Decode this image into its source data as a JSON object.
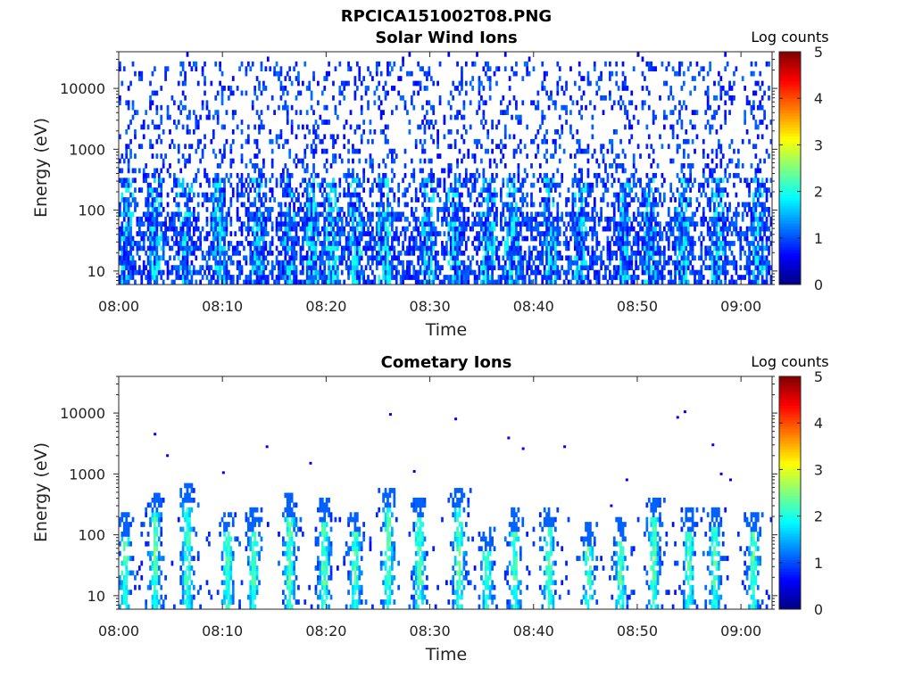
{
  "figure_title": "RPCICA151002T08.PNG",
  "colors": {
    "colormap": "jet",
    "background": "#ffffff",
    "axis": "#262626"
  },
  "chart_data": [
    {
      "type": "heatmap",
      "title": "Solar Wind Ions",
      "xlabel": "Time",
      "ylabel": "Energy (eV)",
      "x_ticks": [
        "08:00",
        "08:10",
        "08:20",
        "08:30",
        "08:40",
        "08:50",
        "09:00"
      ],
      "x_tick_minutes": [
        0,
        10,
        20,
        30,
        40,
        50,
        60
      ],
      "xlim_minutes": [
        0,
        63
      ],
      "y_scale": "log",
      "y_ticks": [
        "10",
        "100",
        "1000",
        "10000"
      ],
      "y_tick_values": [
        10,
        100,
        1000,
        10000
      ],
      "ylim": [
        6,
        40000
      ],
      "colorbar": {
        "label": "Log counts",
        "range": [
          0,
          5
        ],
        "ticks": [
          "0",
          "1",
          "2",
          "3",
          "4",
          "5"
        ]
      },
      "grid": false,
      "pattern": "sparse_background",
      "seed": 11,
      "bursts_minutes": [
        0.8,
        3.5,
        6.4,
        9.7,
        13.4,
        16.3,
        18.6,
        20.5,
        22.8,
        25.6,
        29.8,
        32.4,
        35.6,
        37.9,
        41.6,
        44.6,
        48.7,
        51.3,
        54.4,
        57.8,
        61.8
      ]
    },
    {
      "type": "heatmap",
      "title": "Cometary Ions",
      "xlabel": "Time",
      "ylabel": "Energy (eV)",
      "x_ticks": [
        "08:00",
        "08:10",
        "08:20",
        "08:30",
        "08:40",
        "08:50",
        "09:00"
      ],
      "x_tick_minutes": [
        0,
        10,
        20,
        30,
        40,
        50,
        60
      ],
      "xlim_minutes": [
        0,
        63
      ],
      "y_scale": "log",
      "y_ticks": [
        "10",
        "100",
        "1000",
        "10000"
      ],
      "y_tick_values": [
        10,
        100,
        1000,
        10000
      ],
      "ylim": [
        6,
        40000
      ],
      "colorbar": {
        "label": "Log counts",
        "range": [
          0,
          5
        ],
        "ticks": [
          "0",
          "1",
          "2",
          "3",
          "4",
          "5"
        ]
      },
      "grid": false,
      "pattern": "bursts",
      "seed": 29,
      "bursts_minutes": [
        0.6,
        3.5,
        6.6,
        10.5,
        13.0,
        16.5,
        19.8,
        22.8,
        26.0,
        29.0,
        32.8,
        35.5,
        38.2,
        41.5,
        45.3,
        48.4,
        51.6,
        55.0,
        57.5,
        61.2
      ],
      "burst_peak_energy_eV": [
        220,
        500,
        700,
        250,
        260,
        450,
        380,
        250,
        600,
        420,
        600,
        130,
        260,
        300,
        150,
        180,
        420,
        260,
        300,
        240
      ],
      "sparse_points": [
        [
          3.5,
          4500
        ],
        [
          4.7,
          2000
        ],
        [
          10.1,
          1050
        ],
        [
          14.3,
          2800
        ],
        [
          18.5,
          1500
        ],
        [
          26.2,
          9500
        ],
        [
          28.5,
          1100
        ],
        [
          32.5,
          8000
        ],
        [
          37.6,
          3900
        ],
        [
          39.0,
          2600
        ],
        [
          43.0,
          2800
        ],
        [
          47.5,
          300
        ],
        [
          49.0,
          800
        ],
        [
          53.9,
          8500
        ],
        [
          54.6,
          10500
        ],
        [
          57.3,
          3000
        ],
        [
          58.1,
          1000
        ],
        [
          59.0,
          800
        ]
      ]
    }
  ]
}
